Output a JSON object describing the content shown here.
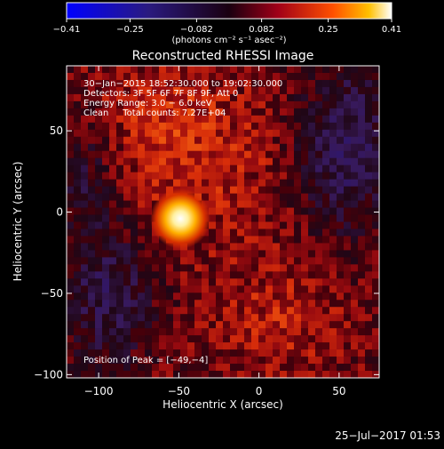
{
  "colorbar": {
    "ticks": [
      {
        "value": -0.41,
        "label": "−0.41"
      },
      {
        "value": -0.25,
        "label": "−0.25"
      },
      {
        "value": -0.082,
        "label": "−0.082"
      },
      {
        "value": 0.082,
        "label": "0.082"
      },
      {
        "value": 0.25,
        "label": "0.25"
      },
      {
        "value": 0.41,
        "label": "0.41"
      }
    ],
    "range": [
      -0.41,
      0.41
    ],
    "units_label": "(photons cm⁻² s⁻¹ asec⁻²)"
  },
  "plot": {
    "title": "Reconstructed RHESSI Image",
    "xlabel": "Heliocentric X (arcsec)",
    "ylabel": "Heliocentric Y (arcsec)",
    "xlim": [
      -120,
      75
    ],
    "ylim": [
      -102,
      90
    ],
    "xticks": [
      {
        "value": -100,
        "label": "−100"
      },
      {
        "value": -50,
        "label": "−50"
      },
      {
        "value": 0,
        "label": "0"
      },
      {
        "value": 50,
        "label": "50"
      }
    ],
    "yticks": [
      {
        "value": 50,
        "label": "50"
      },
      {
        "value": 0,
        "label": "0"
      },
      {
        "value": -50,
        "label": "−50"
      },
      {
        "value": -100,
        "label": "−100"
      }
    ]
  },
  "annotations": {
    "time_range": "30−Jan−2015 18:52:30.000 to 19:02:30.000",
    "detectors": "Detectors: 3F 5F 6F 7F 8F 9F, Att 0",
    "energy_range": "Energy Range: 3.0 − 6.0 keV",
    "method_counts": "Clean     Total counts: 7.27E+04",
    "peak_position": "Position of Peak = [−49,−4]"
  },
  "timestamp": "25−Jul−2017 01:53",
  "chart_data": {
    "type": "heatmap",
    "title": "Reconstructed RHESSI Image",
    "xlabel": "Heliocentric X (arcsec)",
    "ylabel": "Heliocentric Y (arcsec)",
    "xlim": [
      -120,
      75
    ],
    "ylim": [
      -102,
      90
    ],
    "value_range": [
      -0.41,
      0.41
    ],
    "colormap": "blue-purple-red-yellow-white",
    "peak": {
      "x": -49,
      "y": -4
    }
  }
}
